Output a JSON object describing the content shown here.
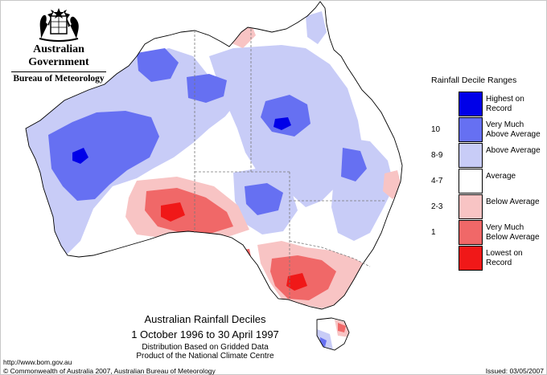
{
  "header": {
    "government": "Australian Government",
    "agency": "Bureau of Meteorology"
  },
  "map": {
    "title": "Australian Rainfall Deciles",
    "period": "1 October 1996 to 30 April 1997",
    "note_line1": "Distribution Based on Gridded Data",
    "note_line2": "Product of the National Climate Centre",
    "colors": {
      "highest": "#0000e8",
      "very_much_above": "#6670f2",
      "above": "#c8ccf7",
      "average": "#ffffff",
      "below": "#f8c4c4",
      "very_much_below": "#f06868",
      "lowest": "#f01818"
    }
  },
  "legend": {
    "title": "Rainfall Decile Ranges",
    "items": [
      {
        "code": "",
        "label": "Highest on Record",
        "color": "#0000e8"
      },
      {
        "code": "10",
        "label": "Very Much Above Average",
        "color": "#6670f2"
      },
      {
        "code": "8-9",
        "label": "Above Average",
        "color": "#c8ccf7"
      },
      {
        "code": "4-7",
        "label": "Average",
        "color": "#ffffff"
      },
      {
        "code": "2-3",
        "label": "Below Average",
        "color": "#f8c4c4"
      },
      {
        "code": "1",
        "label": "Very Much Below Average",
        "color": "#f06868"
      },
      {
        "code": "",
        "label": "Lowest on Record",
        "color": "#f01818"
      }
    ]
  },
  "footer": {
    "url": "http://www.bom.gov.au",
    "copyright": "© Commonwealth of Australia 2007, Australian Bureau of Meteorology",
    "issued": "Issued: 03/05/2007"
  }
}
